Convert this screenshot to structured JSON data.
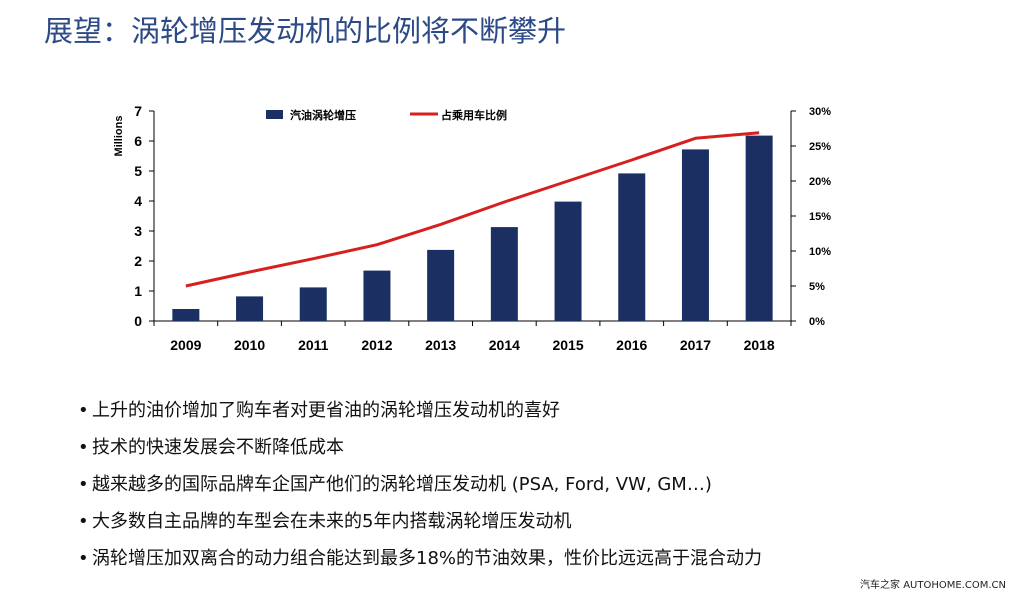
{
  "title": "展望：涡轮增压发动机的比例将不断攀升",
  "chart_data": {
    "type": "bar",
    "categories": [
      "2009",
      "2010",
      "2011",
      "2012",
      "2013",
      "2014",
      "2015",
      "2016",
      "2017",
      "2018"
    ],
    "series": [
      {
        "name": "汽油涡轮增压",
        "type": "bar",
        "axis": "left",
        "color": "#1b2f63",
        "values": [
          0.4,
          0.82,
          1.12,
          1.68,
          2.37,
          3.13,
          3.98,
          4.92,
          5.72,
          6.18
        ]
      },
      {
        "name": "占乘用车比例",
        "type": "line",
        "axis": "right",
        "color": "#d62020",
        "values": [
          5.0,
          7.0,
          8.9,
          10.9,
          13.8,
          17.0,
          20.0,
          23.0,
          26.1,
          26.9
        ]
      }
    ],
    "ylabel": "Millions",
    "ylim": [
      0,
      7
    ],
    "yticks": [
      "0",
      "1",
      "2",
      "3",
      "4",
      "5",
      "6",
      "7"
    ],
    "y2lim": [
      0,
      30
    ],
    "y2ticks": [
      "0%",
      "5%",
      "10%",
      "15%",
      "20%",
      "25%",
      "30%"
    ],
    "grid": false,
    "legend": "top"
  },
  "bullets": [
    "上升的油价增加了购车者对更省油的涡轮增压发动机的喜好",
    "技术的快速发展会不断降低成本",
    "越来越多的国际品牌车企国产他们的涡轮增压发动机 (PSA, Ford, VW, GM…)",
    "大多数自主品牌的车型会在未来的5年内搭载涡轮增压发动机",
    "涡轮增压加双离合的动力组合能达到最多18%的节油效果，性价比远远高于混合动力"
  ],
  "bullet_marker": "•",
  "watermark": "汽车之家 AUTOHOME.COM.CN"
}
